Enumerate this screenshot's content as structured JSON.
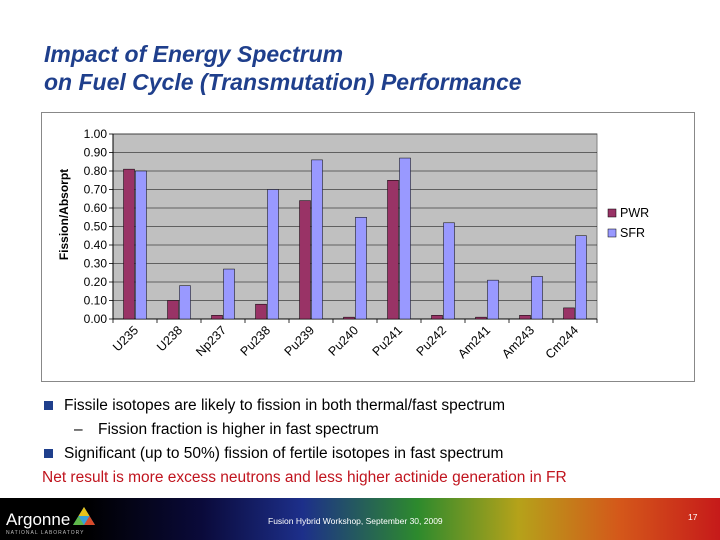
{
  "slide": {
    "title_line1": "Impact of Energy Spectrum",
    "title_line2": "on Fuel Cycle (Transmutation) Performance"
  },
  "chart_data": {
    "type": "bar",
    "ylabel": "Fission/Absorpt",
    "ylim": [
      0,
      1.0
    ],
    "yticks": [
      "1.00",
      "0.90",
      "0.80",
      "0.70",
      "0.60",
      "0.50",
      "0.40",
      "0.30",
      "0.20",
      "0.10",
      "0.00"
    ],
    "categories": [
      "U235",
      "U238",
      "Np237",
      "Pu238",
      "Pu239",
      "Pu240",
      "Pu241",
      "Pu242",
      "Am241",
      "Am243",
      "Cm244"
    ],
    "series": [
      {
        "name": "PWR",
        "color": "#993366",
        "values": [
          0.81,
          0.1,
          0.02,
          0.08,
          0.64,
          0.01,
          0.75,
          0.02,
          0.01,
          0.02,
          0.06
        ]
      },
      {
        "name": "SFR",
        "color": "#9999ff",
        "values": [
          0.8,
          0.18,
          0.27,
          0.7,
          0.86,
          0.55,
          0.87,
          0.52,
          0.21,
          0.23,
          0.45
        ]
      }
    ],
    "legend_position": "right",
    "grid": true,
    "plot_background": "#c0c0c0"
  },
  "bullets": [
    {
      "level": 1,
      "text": "Fissile isotopes are likely to fission in both thermal/fast spectrum"
    },
    {
      "level": 2,
      "text": "Fission fraction is higher in fast spectrum"
    },
    {
      "level": 1,
      "text": "Significant (up to 50%) fission of fertile isotopes in fast spectrum"
    }
  ],
  "sub_dash": "–",
  "net_result": "Net result is more excess neutrons and less higher actinide generation in FR",
  "footer": {
    "logo": "Argonne",
    "logo_sub": "NATIONAL LABORATORY",
    "text": "Fusion Hybrid Workshop, September 30, 2009",
    "page": "17"
  }
}
